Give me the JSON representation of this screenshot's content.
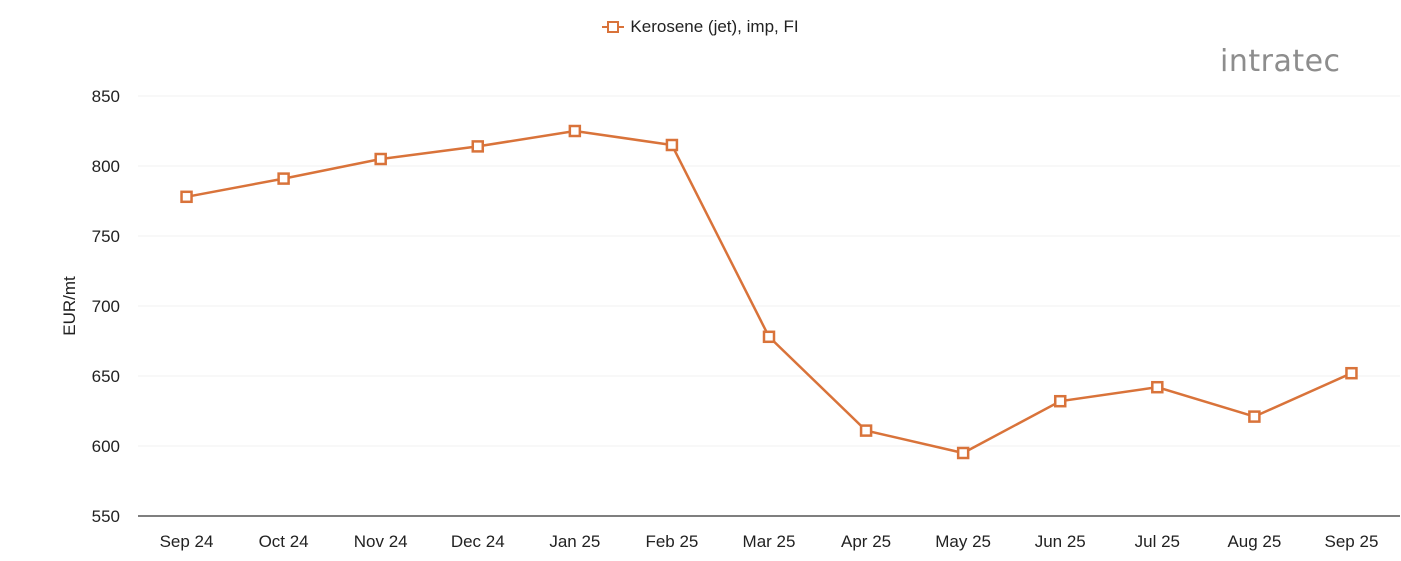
{
  "legend": {
    "label": "Kerosene (jet), imp, FI"
  },
  "logo": {
    "text": "intratec"
  },
  "colors": {
    "series": "#D9733A",
    "grid": "#f0f0f0",
    "axis": "#555555",
    "logo_gray": "#8d8d8d",
    "logo_accent": "#e8c3a4"
  },
  "chart_data": {
    "type": "line",
    "title": "",
    "xlabel": "",
    "ylabel": "EUR/mt",
    "ylim": [
      550,
      850
    ],
    "yticks": [
      550,
      600,
      650,
      700,
      750,
      800,
      850
    ],
    "grid": true,
    "legend_position": "top",
    "categories": [
      "Sep 24",
      "Oct 24",
      "Nov 24",
      "Dec 24",
      "Jan 25",
      "Feb 25",
      "Mar 25",
      "Apr 25",
      "May 25",
      "Jun 25",
      "Jul 25",
      "Aug 25",
      "Sep 25"
    ],
    "series": [
      {
        "name": "Kerosene (jet), imp, FI",
        "values": [
          778,
          791,
          805,
          814,
          825,
          815,
          678,
          611,
          595,
          632,
          642,
          621,
          652
        ]
      }
    ]
  }
}
